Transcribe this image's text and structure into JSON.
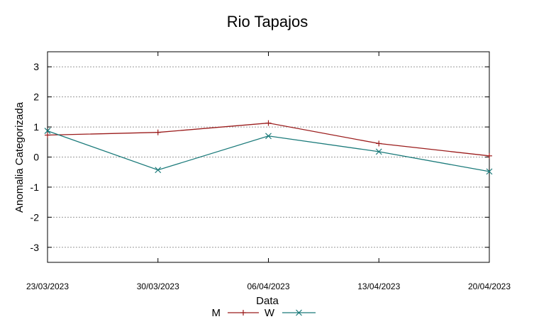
{
  "chart_data": {
    "type": "line",
    "title": "Rio Tapajos",
    "xlabel": "Data",
    "ylabel": "Anomalia Categorizada",
    "categories": [
      "23/03/2023",
      "30/03/2023",
      "06/04/2023",
      "13/04/2023",
      "20/04/2023"
    ],
    "ylim": [
      -3.5,
      3.5
    ],
    "yticks": [
      "3",
      "2",
      "1",
      "0",
      "-1",
      "-2",
      "-3"
    ],
    "ytick_values": [
      3,
      2,
      1,
      0,
      -1,
      -2,
      -3
    ],
    "grid": true,
    "legend_position": "bottom-center",
    "series": [
      {
        "name": "M",
        "values": [
          0.73,
          0.82,
          1.13,
          0.45,
          0.04
        ],
        "color": "#9b1c1c",
        "marker": "plus"
      },
      {
        "name": "W",
        "values": [
          0.87,
          -0.43,
          0.7,
          0.18,
          -0.48
        ],
        "color": "#1a7a7a",
        "marker": "cross"
      }
    ]
  }
}
